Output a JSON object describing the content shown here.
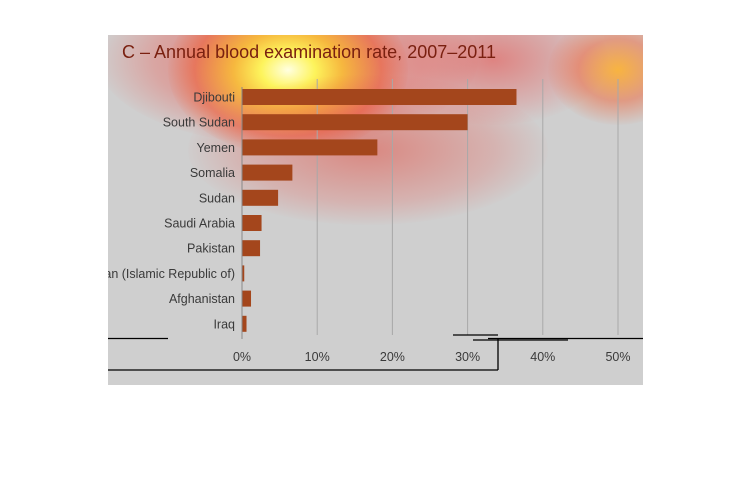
{
  "title": "C – Annual blood examination rate, 2007–2011",
  "colors": {
    "bar": "#a4461c",
    "panel_background": "#cfcfcf",
    "gridline": "#a8a8a8",
    "text": "#3a3a3a",
    "title_text": "#7a2010"
  },
  "chart_data": {
    "type": "bar",
    "orientation": "horizontal",
    "title": "C – Annual blood examination rate, 2007–2011",
    "xlabel": "",
    "ylabel": "",
    "categories": [
      "Djibouti",
      "South Sudan",
      "Yemen",
      "Somalia",
      "Sudan",
      "Saudi Arabia",
      "Pakistan",
      "Iran (Islamic Republic of)",
      "Afghanistan",
      "Iraq"
    ],
    "values": [
      36.5,
      30,
      18,
      6.7,
      4.8,
      2.6,
      2.4,
      0.3,
      1.2,
      0.6
    ],
    "unit": "%",
    "xlim": [
      0,
      50
    ],
    "xticks": [
      0,
      10,
      20,
      30,
      40,
      50
    ],
    "xtick_labels": [
      "0%",
      "10%",
      "20%",
      "30%",
      "40%",
      "50%"
    ],
    "grid": true,
    "legend": "none"
  }
}
